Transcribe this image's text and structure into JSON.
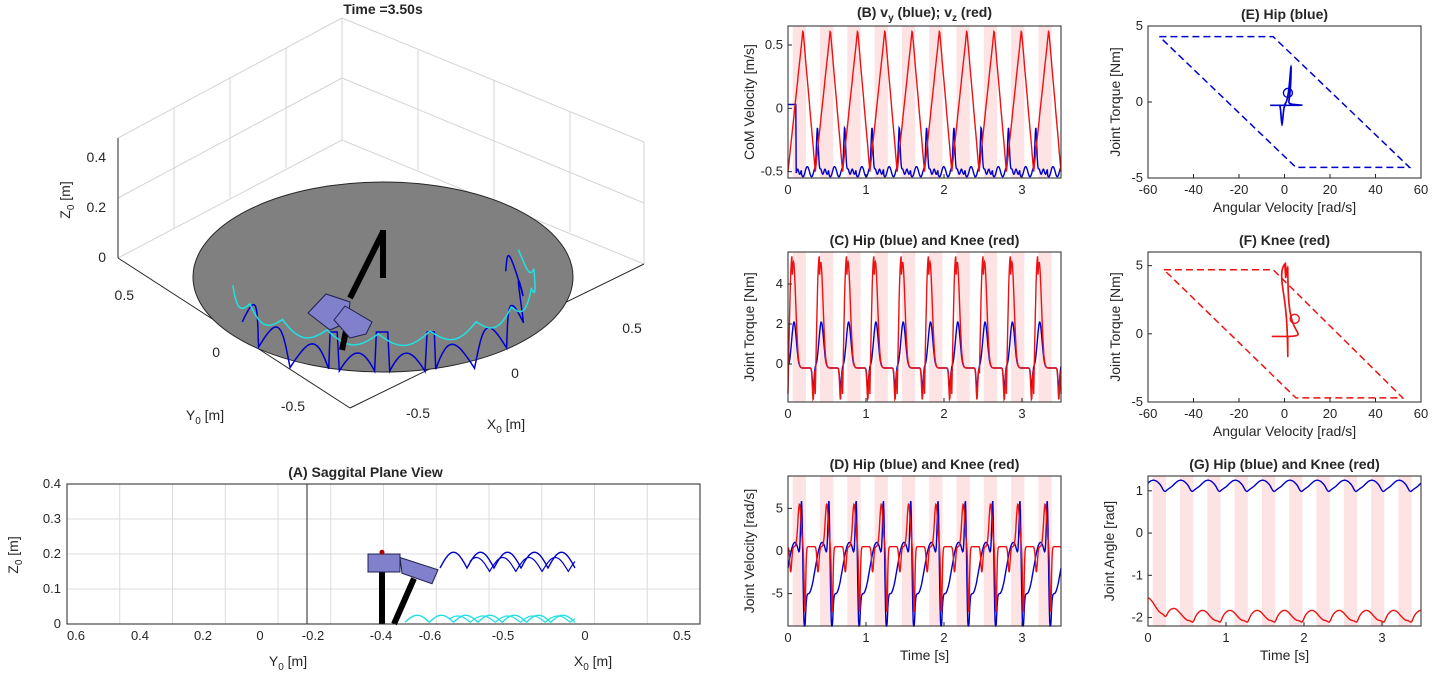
{
  "figure": {
    "time_title": "Time =3.50s"
  },
  "chart_data": [
    {
      "id": "3d",
      "type": "line",
      "title": "Time =3.50s",
      "xlabel_main": "X",
      "xlabel_sub": "0",
      "xlabel_unit": "[m]",
      "ylabel_main": "Y",
      "ylabel_sub": "0",
      "ylabel_unit": "[m]",
      "zlabel_main": "Z",
      "zlabel_sub": "0",
      "zlabel_unit": "[m]",
      "xticks": [
        "-0.5",
        "0",
        "0.5"
      ],
      "yticks": [
        "-0.5",
        "0",
        "0.5"
      ],
      "zticks": [
        "0",
        "0.2",
        "0.4"
      ],
      "colors": {
        "hip_path": "#0000cc",
        "foot_path": "#22e0e0",
        "ground": "#808080",
        "body": "#8080cc",
        "leg": "#000000"
      }
    },
    {
      "id": "A",
      "type": "line",
      "title": "(A) Saggital Plane View",
      "ylabel_main": "Z",
      "ylabel_sub": "0",
      "ylabel_unit": "[m]",
      "y_axis_label_main": "Y",
      "y_axis_label_sub": "0",
      "y_axis_label_unit": "[m]",
      "x_axis_label_main": "X",
      "x_axis_label_sub": "0",
      "x_axis_label_unit": "[m]",
      "ylim": [
        0,
        0.4
      ],
      "yticks": [
        "0",
        "0.1",
        "0.2",
        "0.3",
        "0.4"
      ],
      "left_xticks": [
        {
          "v": 0.6,
          "t": "0.6"
        },
        {
          "v": 0.4,
          "t": "0.4"
        },
        {
          "v": 0.2,
          "t": "0.2"
        },
        {
          "v": 0.0,
          "t": "0"
        },
        {
          "v": -0.2,
          "t": "-0.2"
        }
      ],
      "right_xticks": [
        {
          "v": -0.4,
          "t": "-0.4"
        },
        {
          "v": -0.6,
          "t": "-0.6"
        },
        {
          "v": -0.5,
          "t": "-0.5"
        },
        {
          "v": 0.0,
          "t": "0"
        },
        {
          "v": 0.5,
          "t": "0.5"
        }
      ]
    },
    {
      "id": "B",
      "type": "line",
      "title_parts": [
        "(B) v",
        "y",
        " (blue); v",
        "z",
        " (red)"
      ],
      "ylabel": "CoM Velocity [m/s]",
      "xlim": [
        0,
        3.5
      ],
      "ylim": [
        -0.55,
        0.65
      ],
      "xticks": [
        "0",
        "1",
        "2",
        "3"
      ],
      "yticks": [
        "-0.5",
        "0",
        "0.5"
      ],
      "ytick_values": [
        -0.5,
        0,
        0.5
      ],
      "series": [
        {
          "color": "#0000cc",
          "kind": "vy"
        },
        {
          "color": "#ee1111",
          "kind": "vz"
        }
      ]
    },
    {
      "id": "C",
      "type": "line",
      "title": "(C) Hip (blue) and Knee (red)",
      "ylabel": "Joint Torque [Nm]",
      "xlim": [
        0,
        3.5
      ],
      "ylim": [
        -1.9,
        5.6
      ],
      "xticks": [
        "0",
        "1",
        "2",
        "3"
      ],
      "yticks": [
        "0",
        "2",
        "4"
      ],
      "ytick_values": [
        0,
        2,
        4
      ],
      "series": [
        {
          "color": "#0000cc",
          "kind": "hip_tau"
        },
        {
          "color": "#ee1111",
          "kind": "knee_tau"
        }
      ]
    },
    {
      "id": "D",
      "type": "line",
      "title": "(D) Hip (blue) and Knee (red)",
      "ylabel": "Joint Velocity [rad/s]",
      "xlabel": "Time [s]",
      "xlim": [
        0,
        3.5
      ],
      "ylim": [
        -8.8,
        8.8
      ],
      "xticks": [
        "0",
        "1",
        "2",
        "3"
      ],
      "yticks": [
        "-5",
        "0",
        "5"
      ],
      "ytick_values": [
        -5,
        0,
        5
      ],
      "series": [
        {
          "color": "#0000cc",
          "kind": "hip_w"
        },
        {
          "color": "#ee1111",
          "kind": "knee_w"
        }
      ]
    },
    {
      "id": "E",
      "type": "scatter",
      "title": "(E) Hip (blue)",
      "xlabel": "Angular Velocity [rad/s]",
      "ylabel": "Joint Torque [Nm]",
      "xlim": [
        -60,
        60
      ],
      "ylim": [
        -5,
        5
      ],
      "xticks": [
        "-60",
        "-40",
        "-20",
        "0",
        "20",
        "40",
        "60"
      ],
      "yticks": [
        "-5",
        "0",
        "5"
      ],
      "envelope": [
        [
          -55,
          4.3
        ],
        [
          -5,
          4.3
        ],
        [
          55,
          -4.3
        ],
        [
          5,
          -4.3
        ]
      ],
      "color": "#0000cc"
    },
    {
      "id": "F",
      "type": "scatter",
      "title": "(F) Knee (red)",
      "xlabel": "Angular Velocity [rad/s]",
      "ylabel": "Joint Torque [Nm]",
      "xlim": [
        -60,
        60
      ],
      "ylim": [
        -5,
        6
      ],
      "xticks": [
        "-60",
        "-40",
        "-20",
        "0",
        "20",
        "40",
        "60"
      ],
      "yticks": [
        "-5",
        "0",
        "5"
      ],
      "envelope": [
        [
          -53,
          4.7
        ],
        [
          -5,
          4.7
        ],
        [
          52,
          -4.7
        ],
        [
          5,
          -4.7
        ]
      ],
      "color": "#ee1111"
    },
    {
      "id": "G",
      "type": "line",
      "title": "(G) Hip (blue) and Knee (red)",
      "ylabel": "Joint Angle [rad]",
      "xlabel": "Time [s]",
      "xlim": [
        0,
        3.5
      ],
      "ylim": [
        -2.2,
        1.35
      ],
      "xticks": [
        "0",
        "1",
        "2",
        "3"
      ],
      "yticks": [
        "-2",
        "-1",
        "0",
        "1"
      ],
      "ytick_values": [
        -2,
        -1,
        0,
        1
      ],
      "series": [
        {
          "color": "#0000cc",
          "kind": "hip_q"
        },
        {
          "color": "#ee1111",
          "kind": "knee_q"
        }
      ]
    }
  ]
}
